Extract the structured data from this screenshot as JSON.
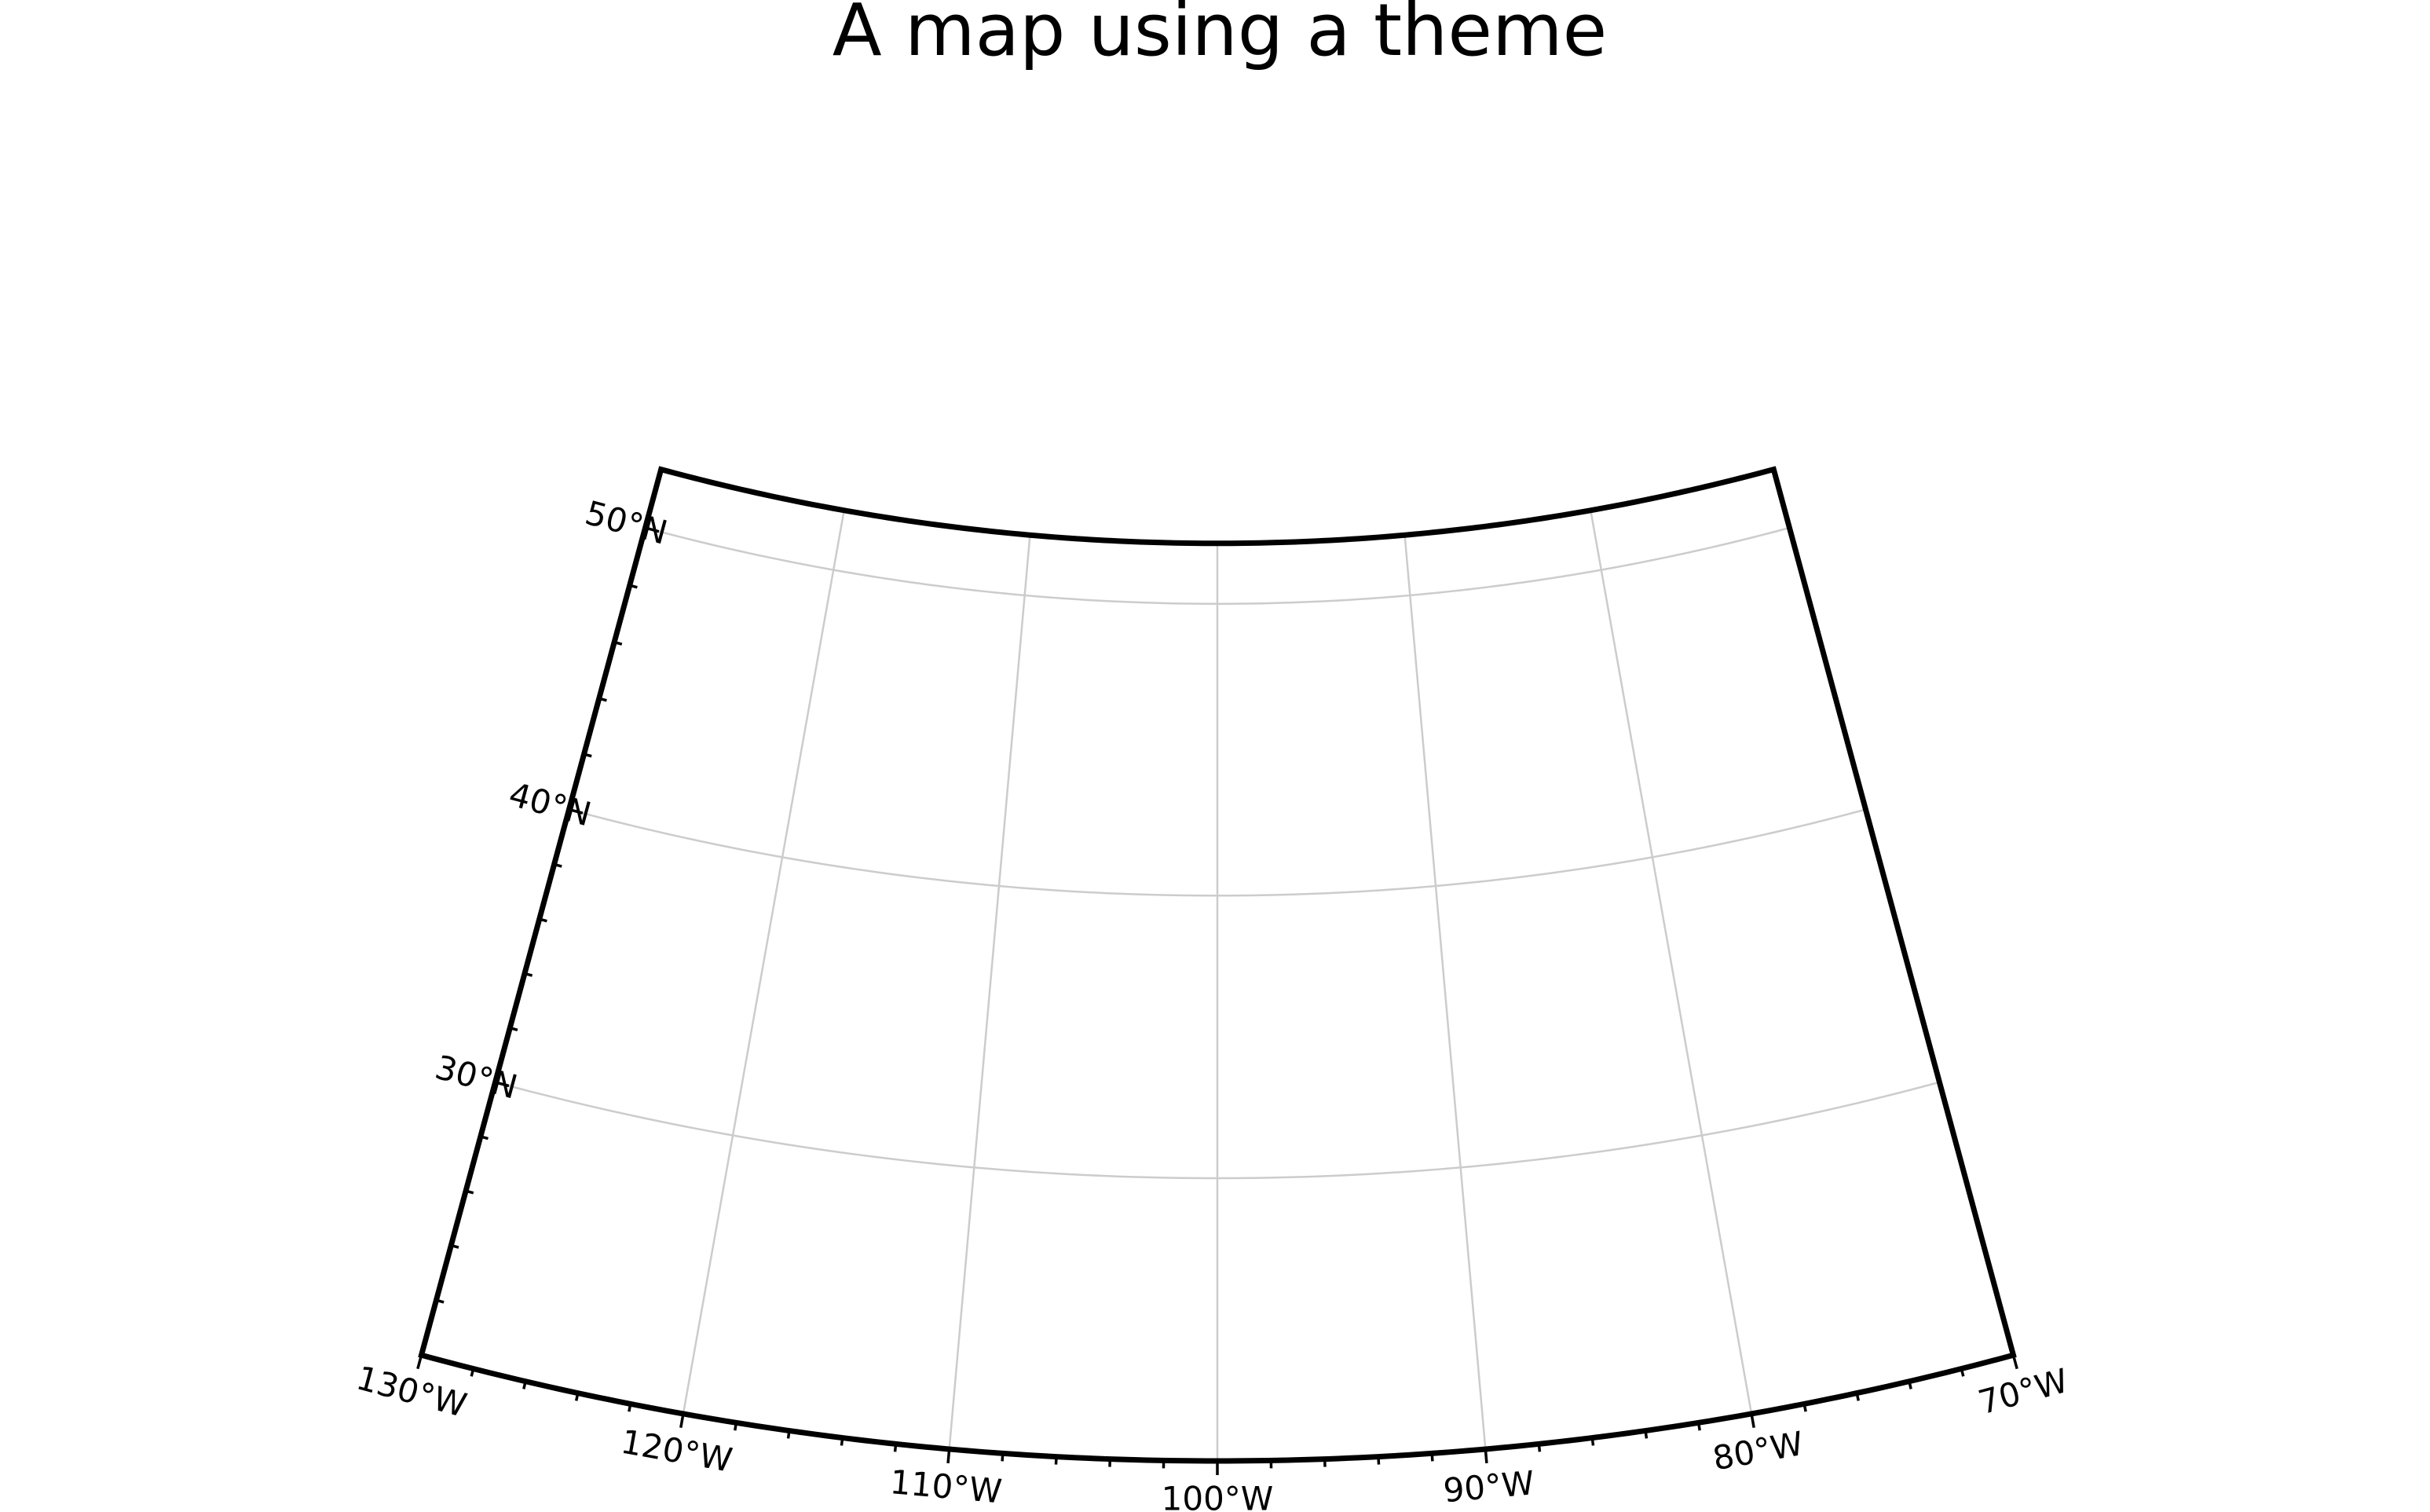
{
  "title": "A map using a theme",
  "projection": "lambert-conic-conformal",
  "region": {
    "west": -130,
    "east": -70,
    "south": 20,
    "north": 52
  },
  "frame_color": "#000000",
  "grid_color": "#cccccc",
  "background_color": "#ffffff",
  "meridians": [
    -120,
    -110,
    -100,
    -90,
    -80
  ],
  "parallels": [
    30,
    40,
    50
  ],
  "longitude_labels": [
    {
      "lon": -130,
      "text": "130°W"
    },
    {
      "lon": -120,
      "text": "120°W"
    },
    {
      "lon": -110,
      "text": "110°W"
    },
    {
      "lon": -100,
      "text": "100°W"
    },
    {
      "lon": -90,
      "text": "90°W"
    },
    {
      "lon": -80,
      "text": "80°W"
    },
    {
      "lon": -70,
      "text": "70°W"
    }
  ],
  "latitude_labels": [
    {
      "lat": 30,
      "text": "30°N"
    },
    {
      "lat": 40,
      "text": "40°N"
    },
    {
      "lat": 50,
      "text": "50°N"
    }
  ]
}
